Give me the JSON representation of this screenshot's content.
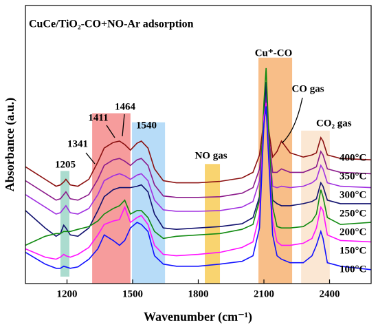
{
  "chart_data": {
    "type": "line",
    "title": "CuCe/TiO₂-CO+NO-Ar adsorption",
    "x_label": "Wavenumber (cm⁻¹)",
    "y_label": "Absorbance (a.u.)",
    "xlim": [
      1010,
      2590
    ],
    "xticks": [
      1200,
      1500,
      1800,
      2100,
      2400
    ],
    "ylim": [
      0,
      400
    ],
    "x": [
      1010,
      1100,
      1150,
      1170,
      1185,
      1195,
      1215,
      1250,
      1300,
      1341,
      1370,
      1411,
      1440,
      1464,
      1490,
      1520,
      1540,
      1570,
      1600,
      1640,
      1700,
      1800,
      1900,
      2000,
      2050,
      2080,
      2100,
      2110,
      2120,
      2140,
      2160,
      2180,
      2220,
      2280,
      2320,
      2340,
      2360,
      2370,
      2390,
      2450,
      2590
    ],
    "series": [
      {
        "name": "400°C",
        "color": "#8b1010",
        "values": [
          168,
          150,
          140,
          142,
          146,
          150,
          142,
          140,
          150,
          175,
          195,
          203,
          205,
          200,
          192,
          202,
          205,
          195,
          165,
          148,
          145,
          145,
          147,
          152,
          160,
          185,
          235,
          250,
          225,
          182,
          190,
          205,
          188,
          182,
          185,
          188,
          210,
          205,
          185,
          180,
          178
        ]
      },
      {
        "name": "350°C",
        "color": "#8b1a8b",
        "values": [
          148,
          130,
          120,
          122,
          128,
          132,
          122,
          120,
          128,
          150,
          170,
          178,
          180,
          176,
          170,
          178,
          180,
          170,
          142,
          126,
          124,
          124,
          125,
          130,
          138,
          165,
          230,
          265,
          220,
          160,
          160,
          165,
          160,
          160,
          165,
          168,
          190,
          185,
          165,
          160,
          158
        ]
      },
      {
        "name": "300°C",
        "color": "#a030e0",
        "values": [
          128,
          110,
          100,
          102,
          108,
          112,
          102,
          100,
          108,
          128,
          148,
          155,
          158,
          155,
          150,
          156,
          158,
          148,
          120,
          106,
          104,
          104,
          105,
          110,
          118,
          148,
          225,
          275,
          210,
          140,
          138,
          140,
          138,
          140,
          145,
          150,
          170,
          165,
          145,
          140,
          138
        ]
      },
      {
        "name": "250°C",
        "color": "#10106e",
        "values": [
          105,
          80,
          68,
          72,
          84,
          80,
          70,
          68,
          80,
          105,
          125,
          135,
          138,
          138,
          138,
          140,
          142,
          132,
          100,
          80,
          78,
          80,
          82,
          86,
          95,
          125,
          235,
          290,
          215,
          120,
          115,
          112,
          112,
          115,
          118,
          122,
          145,
          140,
          120,
          115,
          115
        ]
      },
      {
        "name": "200°C",
        "color": "#108a10",
        "values": [
          55,
          68,
          72,
          72,
          75,
          75,
          75,
          78,
          82,
          90,
          100,
          108,
          112,
          120,
          100,
          105,
          105,
          95,
          75,
          65,
          68,
          70,
          72,
          78,
          85,
          120,
          260,
          310,
          230,
          110,
          82,
          80,
          80,
          82,
          90,
          100,
          135,
          125,
          95,
          85,
          88
        ]
      },
      {
        "name": "150°C",
        "color": "#ff10ff",
        "values": [
          50,
          38,
          35,
          38,
          42,
          40,
          38,
          42,
          52,
          70,
          85,
          90,
          92,
          110,
          88,
          95,
          98,
          85,
          55,
          42,
          40,
          42,
          45,
          52,
          60,
          100,
          240,
          260,
          200,
          90,
          60,
          55,
          55,
          58,
          65,
          80,
          110,
          105,
          70,
          62,
          60
        ]
      },
      {
        "name": "100°C",
        "color": "#1010ff",
        "values": [
          45,
          28,
          22,
          22,
          25,
          24,
          22,
          24,
          35,
          50,
          70,
          62,
          55,
          62,
          80,
          88,
          85,
          75,
          40,
          28,
          25,
          25,
          28,
          32,
          40,
          80,
          230,
          255,
          190,
          70,
          40,
          35,
          30,
          30,
          40,
          55,
          75,
          65,
          30,
          25,
          20
        ]
      }
    ],
    "regions": [
      {
        "x": [
          1170,
          1211
        ],
        "y": [
          10,
          162
        ],
        "color": "#8fd0bf"
      },
      {
        "x": [
          1315,
          1490
        ],
        "y": [
          0,
          245
        ],
        "color": "#f37b7b"
      },
      {
        "x": [
          1497,
          1648
        ],
        "y": [
          0,
          232
        ],
        "color": "#9fd0f5"
      },
      {
        "x": [
          1830,
          1899
        ],
        "y": [
          0,
          172
        ],
        "color": "#f7c640"
      },
      {
        "x": [
          2075,
          2229
        ],
        "y": [
          0,
          325
        ],
        "color": "#f5a860"
      },
      {
        "x": [
          2270,
          2401
        ],
        "y": [
          0,
          220
        ],
        "color": "#f9dfc4"
      }
    ],
    "annotations": [
      "1205",
      "1341",
      "1411",
      "1464",
      "1540",
      "NO gas",
      "Cu⁺-CO",
      "CO gas",
      "CO₂ gas"
    ]
  }
}
